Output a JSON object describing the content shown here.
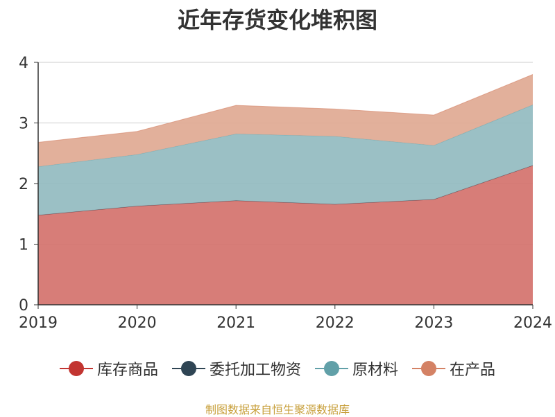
{
  "chart_data": {
    "type": "area",
    "stacked": true,
    "title": "近年存货变化堆积图",
    "xlabel": "",
    "ylabel": "",
    "categories": [
      "2019",
      "2020",
      "2021",
      "2022",
      "2023",
      "2024"
    ],
    "ylim": [
      0,
      4
    ],
    "yticks": [
      "0",
      "1",
      "2",
      "3",
      "4"
    ],
    "grid": true,
    "legend_position": "bottom",
    "series": [
      {
        "name": "库存商品",
        "color": "#c23531",
        "fill": "#d4726c",
        "values": [
          1.48,
          1.63,
          1.72,
          1.66,
          1.74,
          2.3
        ]
      },
      {
        "name": "委托加工物资",
        "color": "#2f4554",
        "fill": "#2f4554",
        "values": [
          0.0,
          0.0,
          0.0,
          0.0,
          0.0,
          0.0
        ]
      },
      {
        "name": "原材料",
        "color": "#61a0a8",
        "fill": "#92bbc0",
        "values": [
          0.8,
          0.85,
          1.1,
          1.12,
          0.89,
          1.0
        ]
      },
      {
        "name": "在产品",
        "color": "#d48265",
        "fill": "#e0a992",
        "values": [
          0.4,
          0.38,
          0.47,
          0.45,
          0.5,
          0.5
        ]
      }
    ]
  },
  "source_note": "制图数据来自恒生聚源数据库"
}
